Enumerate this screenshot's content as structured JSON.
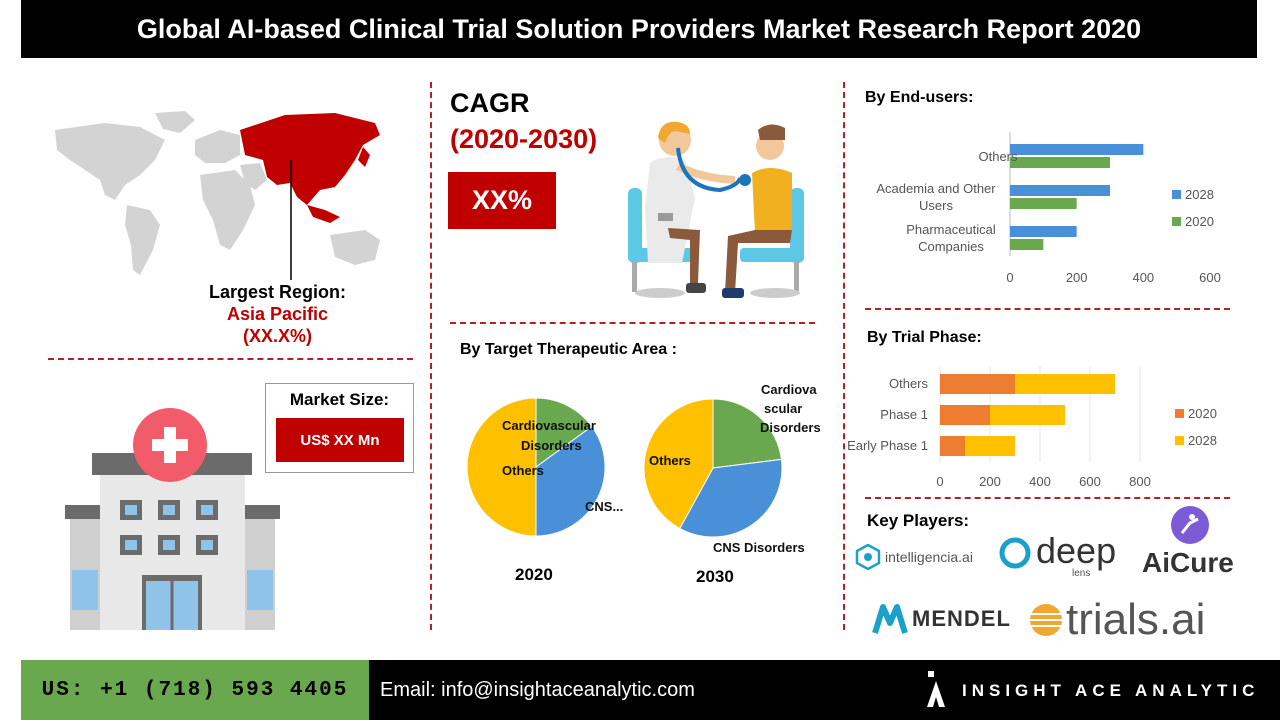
{
  "header": {
    "title": "Global AI-based Clinical Trial Solution Providers Market Research Report 2020"
  },
  "region": {
    "label": "Largest Region:",
    "name": "Asia Pacific",
    "share": "(XX.X%)"
  },
  "market": {
    "label": "Market Size:",
    "value": "US$ XX Mn"
  },
  "cagr": {
    "label": "CAGR",
    "period": "(2020-2030)",
    "value": "XX%"
  },
  "therapeutic": {
    "title": "By Target Therapeutic Area :",
    "year1": "2020",
    "year2": "2030"
  },
  "end_users": {
    "title": "By End-users:"
  },
  "trial_phase": {
    "title": "By Trial Phase:"
  },
  "players": {
    "title": "Key Players:",
    "names": [
      "intelligencia.ai",
      "deep",
      "lens",
      "AiCure",
      "MENDEL",
      "trials.ai"
    ]
  },
  "footer": {
    "phone": "US: +1 (718) 593 4405",
    "email": "Email: info@insightaceanalytic.com",
    "brand": "INSIGHT ACE ANALYTIC"
  },
  "colors": {
    "accent_red": "#c00000",
    "blue": "#4a90d9",
    "green": "#6aa84f",
    "orange": "#ed7d31",
    "yellow": "#ffc000"
  },
  "chart_data": [
    {
      "type": "bar",
      "orientation": "horizontal",
      "categories": [
        "Pharmaceutical Companies",
        "Academia and Other Users",
        "Others"
      ],
      "series": [
        {
          "name": "2028",
          "values": [
            200,
            300,
            400
          ],
          "color": "#4a90d9"
        },
        {
          "name": "2020",
          "values": [
            100,
            200,
            300
          ],
          "color": "#6aa84f"
        }
      ],
      "xlim": [
        0,
        600
      ],
      "xticks": [
        0,
        200,
        400,
        600
      ],
      "legend": "right"
    },
    {
      "type": "bar",
      "orientation": "horizontal",
      "stacked": true,
      "categories": [
        "Early Phase 1",
        "Phase 1",
        "Others"
      ],
      "series": [
        {
          "name": "2020",
          "values": [
            100,
            200,
            300
          ],
          "color": "#ed7d31"
        },
        {
          "name": "2028",
          "values": [
            200,
            300,
            400
          ],
          "color": "#ffc000"
        }
      ],
      "xlim": [
        0,
        800
      ],
      "xticks": [
        0,
        200,
        400,
        600,
        800
      ],
      "legend": "right"
    },
    {
      "type": "pie",
      "title": "2020",
      "labels": [
        "Cardiovascular Disorders",
        "CNS...",
        "Others"
      ],
      "values": [
        15,
        35,
        50
      ],
      "colors": [
        "#6aa84f",
        "#4a90d9",
        "#ffc000"
      ]
    },
    {
      "type": "pie",
      "title": "2030",
      "labels": [
        "Cardiovascular Disorders",
        "CNS Disorders",
        "Others"
      ],
      "values": [
        23,
        35,
        42
      ],
      "colors": [
        "#6aa84f",
        "#4a90d9",
        "#ffc000"
      ]
    }
  ]
}
